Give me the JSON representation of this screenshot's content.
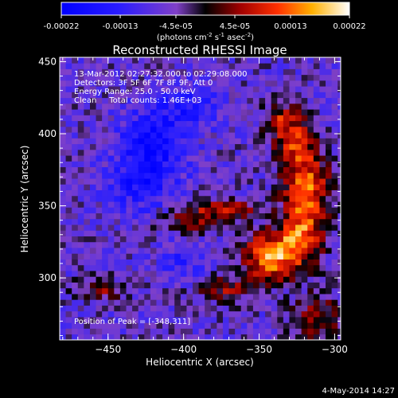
{
  "colorbar": {
    "tick_labels": [
      "-0.00022",
      "-0.00013",
      "-4.5e-05",
      "4.5e-05",
      "0.00013",
      "0.00022"
    ],
    "tick_values": [
      -0.00022,
      -0.00013,
      -4.5e-05,
      4.5e-05,
      0.00013,
      0.00022
    ],
    "range": [
      -0.00022,
      0.00022
    ],
    "units_main": "(photons cm",
    "units_sup1": "-2",
    "units_mid": " s",
    "units_sup2": "-1",
    "units_end": " asec",
    "units_sup3": "-2",
    "units_close": ")"
  },
  "chart_data": {
    "type": "heatmap",
    "title": "Reconstructed RHESSI Image",
    "xlabel": "Heliocentric X (arcsec)",
    "ylabel": "Heliocentric Y (arcsec)",
    "xlim": [
      -482,
      -296
    ],
    "ylim": [
      257,
      453
    ],
    "x_ticks": [
      -450,
      -400,
      -350,
      -300
    ],
    "y_ticks": [
      300,
      350,
      400,
      450
    ],
    "info_lines": [
      "13-Mar-2012 02:27:32.000 to 02:29:08.000",
      "Detectors: 3F 5F 6F 7F 8F 9F, Att 0",
      "Energy Range: 25.0 - 50.0 keV",
      "Clean     Total counts: 1.46E+03"
    ],
    "peak_label": "Position of Peak = [-348,311]",
    "peak": [
      -348,
      311
    ],
    "sources": [
      {
        "x": -342,
        "y": 315,
        "amp": 1.0,
        "sx": 13,
        "sy": 11
      },
      {
        "x": -322,
        "y": 330,
        "amp": 0.75,
        "sx": 10,
        "sy": 13
      },
      {
        "x": -318,
        "y": 362,
        "amp": 0.78,
        "sx": 11,
        "sy": 16
      },
      {
        "x": -326,
        "y": 392,
        "amp": 0.62,
        "sx": 9,
        "sy": 13
      },
      {
        "x": -336,
        "y": 410,
        "amp": 0.5,
        "sx": 8,
        "sy": 9
      },
      {
        "x": -372,
        "y": 348,
        "amp": 0.55,
        "sx": 16,
        "sy": 5
      },
      {
        "x": -398,
        "y": 340,
        "amp": 0.42,
        "sx": 13,
        "sy": 6
      },
      {
        "x": -455,
        "y": 292,
        "amp": 0.45,
        "sx": 11,
        "sy": 5
      },
      {
        "x": -372,
        "y": 292,
        "amp": 0.45,
        "sx": 13,
        "sy": 6
      },
      {
        "x": -312,
        "y": 272,
        "amp": 0.5,
        "sx": 11,
        "sy": 11
      },
      {
        "x": -420,
        "y": 395,
        "amp": -0.55,
        "sx": 16,
        "sy": 16
      },
      {
        "x": -428,
        "y": 365,
        "amp": -0.45,
        "sx": 15,
        "sy": 13
      },
      {
        "x": -395,
        "y": 420,
        "amp": -0.35,
        "sx": 16,
        "sy": 11
      },
      {
        "x": -402,
        "y": 312,
        "amp": -0.28,
        "sx": 11,
        "sy": 9
      }
    ]
  },
  "footer_date": "4-May-2014 14:27"
}
